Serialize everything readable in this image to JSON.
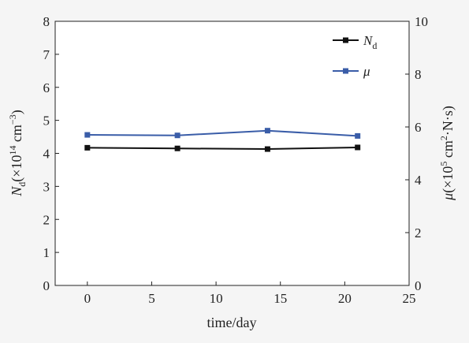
{
  "chart_data": {
    "type": "line",
    "x": [
      0,
      7,
      14,
      21
    ],
    "xlabel": "time/day",
    "xlim": [
      -2.5,
      25
    ],
    "xticks": [
      "0",
      "5",
      "10",
      "15",
      "20",
      "25"
    ],
    "ylabel_left": {
      "sym": "N",
      "sub": "d",
      "pre": "(×10",
      "exp": "14",
      "unit": " cm",
      "unit_exp": "−3",
      "post": ")"
    },
    "ylim_left": [
      0,
      8
    ],
    "yticks_left": [
      "0",
      "1",
      "2",
      "3",
      "4",
      "5",
      "6",
      "7",
      "8"
    ],
    "ylabel_right": {
      "sym": "μ",
      "pre": "(×10",
      "exp": "5",
      "unit": " cm",
      "unit_exp": "2",
      "post": "·N·s)"
    },
    "ylim_right": [
      0,
      10
    ],
    "yticks_right": [
      "0",
      "2",
      "4",
      "6",
      "8",
      "10"
    ],
    "grid": false,
    "legend_position": "top-right",
    "series": [
      {
        "name": "N",
        "name_sub": "d",
        "axis": "left",
        "color": "#111111",
        "values": [
          4.17,
          4.15,
          4.13,
          4.18
        ]
      },
      {
        "name": "μ",
        "axis": "right",
        "color": "#3a5da8",
        "values": [
          5.7,
          5.68,
          5.86,
          5.66
        ]
      }
    ]
  }
}
